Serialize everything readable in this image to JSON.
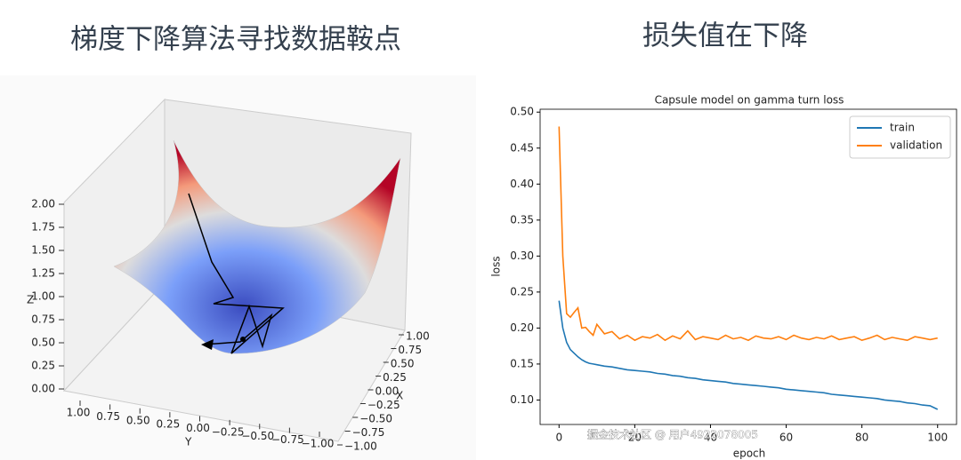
{
  "slide": {
    "left_title": "梯度下降算法寻找数据鞍点",
    "right_title": "损失值在下降"
  },
  "watermark": "掘金技术社区 @ 用户4922078005",
  "chart_data": [
    {
      "type": "surface3d",
      "xlabel": "X",
      "ylabel": "Y",
      "zlabel": "Z",
      "xticks": [
        {
          "value": 1,
          "label": "1.00"
        },
        {
          "value": 0.75,
          "label": "0.75"
        },
        {
          "value": 0.5,
          "label": "0.50"
        },
        {
          "value": 0.25,
          "label": "0.25"
        },
        {
          "value": 0,
          "label": "0.00"
        },
        {
          "value": -0.25,
          "label": "−0.25"
        },
        {
          "value": -0.5,
          "label": "−0.50"
        },
        {
          "value": -0.75,
          "label": "−0.75"
        },
        {
          "value": -1,
          "label": "−1.00"
        }
      ],
      "yticks": [
        {
          "value": 1,
          "label": "1.00"
        },
        {
          "value": 0.75,
          "label": "0.75"
        },
        {
          "value": 0.5,
          "label": "0.50"
        },
        {
          "value": 0.25,
          "label": "0.25"
        },
        {
          "value": 0,
          "label": "0.00"
        },
        {
          "value": -0.25,
          "label": "−0.25"
        },
        {
          "value": -0.5,
          "label": "−0.50"
        },
        {
          "value": -0.75,
          "label": "−0.75"
        },
        {
          "value": -1,
          "label": "−1.00"
        }
      ],
      "zticks": [
        {
          "value": 0,
          "label": "0.00"
        },
        {
          "value": 0.25,
          "label": "0.25"
        },
        {
          "value": 0.5,
          "label": "0.50"
        },
        {
          "value": 0.75,
          "label": "0.75"
        },
        {
          "value": 1,
          "label": "1.00"
        },
        {
          "value": 1.25,
          "label": "1.25"
        },
        {
          "value": 1.5,
          "label": "1.50"
        },
        {
          "value": 1.75,
          "label": "1.75"
        },
        {
          "value": 2,
          "label": "2.00"
        }
      ]
    },
    {
      "type": "line",
      "title": "Capsule model on gamma turn loss",
      "xlabel": "epoch",
      "ylabel": "loss",
      "x": [
        0,
        1,
        2,
        3,
        4,
        5,
        6,
        7,
        8,
        9,
        10,
        12,
        14,
        16,
        18,
        20,
        22,
        24,
        26,
        28,
        30,
        32,
        34,
        36,
        38,
        40,
        42,
        44,
        46,
        48,
        50,
        52,
        54,
        56,
        58,
        60,
        62,
        64,
        66,
        68,
        70,
        72,
        74,
        76,
        78,
        80,
        82,
        84,
        86,
        88,
        90,
        92,
        94,
        96,
        98,
        100
      ],
      "series": [
        {
          "name": "train",
          "color": "#1f77b4",
          "values": [
            0.238,
            0.2,
            0.18,
            0.17,
            0.165,
            0.16,
            0.156,
            0.153,
            0.151,
            0.15,
            0.149,
            0.147,
            0.146,
            0.144,
            0.142,
            0.141,
            0.14,
            0.139,
            0.137,
            0.136,
            0.134,
            0.133,
            0.131,
            0.13,
            0.128,
            0.127,
            0.126,
            0.125,
            0.123,
            0.122,
            0.121,
            0.12,
            0.119,
            0.118,
            0.117,
            0.115,
            0.114,
            0.113,
            0.112,
            0.111,
            0.11,
            0.108,
            0.107,
            0.106,
            0.105,
            0.104,
            0.103,
            0.102,
            0.1,
            0.099,
            0.098,
            0.096,
            0.095,
            0.093,
            0.092,
            0.087
          ]
        },
        {
          "name": "validation",
          "color": "#ff7f0e",
          "values": [
            0.48,
            0.3,
            0.22,
            0.215,
            0.222,
            0.228,
            0.2,
            0.201,
            0.195,
            0.19,
            0.205,
            0.192,
            0.195,
            0.185,
            0.19,
            0.183,
            0.188,
            0.186,
            0.191,
            0.183,
            0.189,
            0.185,
            0.196,
            0.184,
            0.188,
            0.186,
            0.184,
            0.19,
            0.185,
            0.187,
            0.183,
            0.189,
            0.186,
            0.185,
            0.188,
            0.184,
            0.19,
            0.186,
            0.184,
            0.187,
            0.185,
            0.189,
            0.184,
            0.186,
            0.188,
            0.183,
            0.186,
            0.19,
            0.184,
            0.187,
            0.185,
            0.183,
            0.188,
            0.186,
            0.184,
            0.186
          ]
        }
      ],
      "xlim": [
        -5,
        105
      ],
      "ylim": [
        0.066,
        0.504
      ],
      "xticks": [
        0,
        20,
        40,
        60,
        80,
        100
      ],
      "yticks": [
        {
          "value": 0.1,
          "label": "0.10"
        },
        {
          "value": 0.15,
          "label": "0.15"
        },
        {
          "value": 0.2,
          "label": "0.20"
        },
        {
          "value": 0.25,
          "label": "0.25"
        },
        {
          "value": 0.3,
          "label": "0.30"
        },
        {
          "value": 0.35,
          "label": "0.35"
        },
        {
          "value": 0.4,
          "label": "0.40"
        },
        {
          "value": 0.45,
          "label": "0.45"
        },
        {
          "value": 0.5,
          "label": "0.50"
        }
      ],
      "legend": "upper right"
    }
  ]
}
